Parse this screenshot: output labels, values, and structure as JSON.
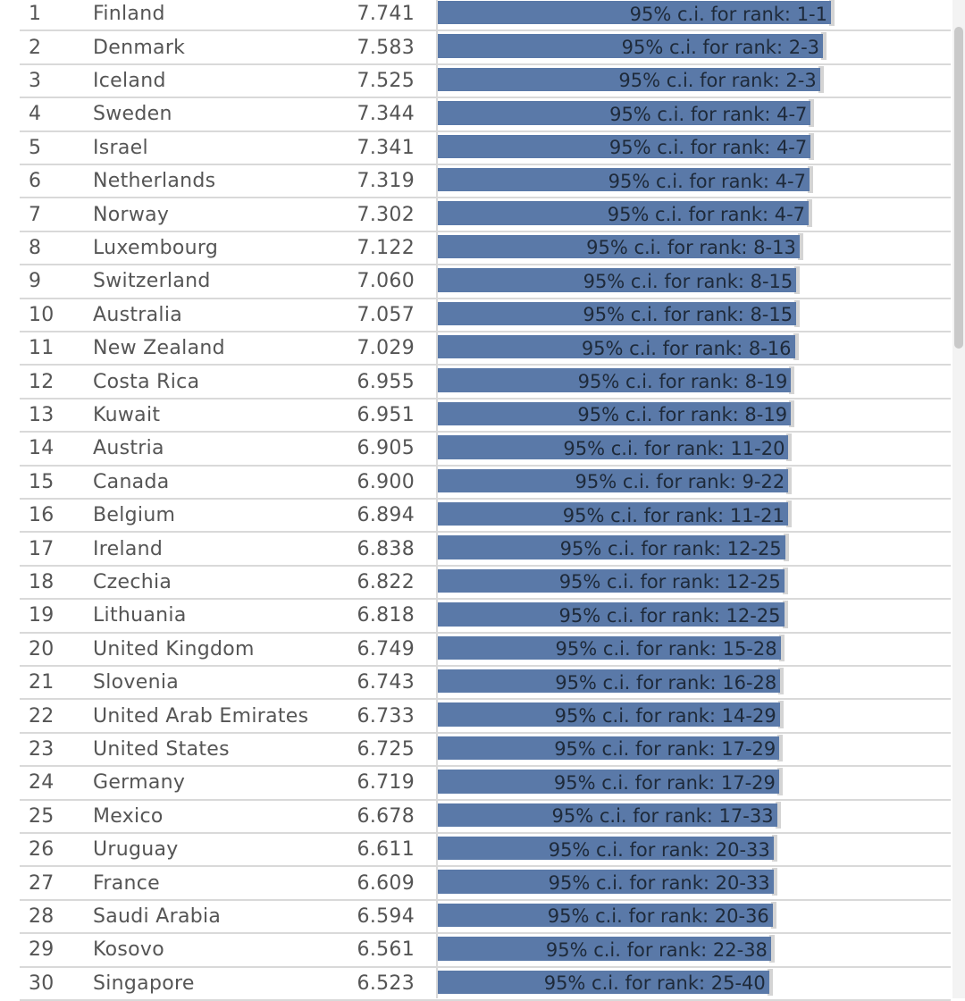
{
  "chart_data": {
    "type": "bar",
    "columns": [
      "rank",
      "country",
      "score",
      "ci_label"
    ],
    "rows": [
      {
        "rank": "1",
        "country": "Finland",
        "score": "7.741",
        "ci": "95% c.i. for rank: 1-1"
      },
      {
        "rank": "2",
        "country": "Denmark",
        "score": "7.583",
        "ci": "95% c.i. for rank: 2-3"
      },
      {
        "rank": "3",
        "country": "Iceland",
        "score": "7.525",
        "ci": "95% c.i. for rank: 2-3"
      },
      {
        "rank": "4",
        "country": "Sweden",
        "score": "7.344",
        "ci": "95% c.i. for rank: 4-7"
      },
      {
        "rank": "5",
        "country": "Israel",
        "score": "7.341",
        "ci": "95% c.i. for rank: 4-7"
      },
      {
        "rank": "6",
        "country": "Netherlands",
        "score": "7.319",
        "ci": "95% c.i. for rank: 4-7"
      },
      {
        "rank": "7",
        "country": "Norway",
        "score": "7.302",
        "ci": "95% c.i. for rank: 4-7"
      },
      {
        "rank": "8",
        "country": "Luxembourg",
        "score": "7.122",
        "ci": "95% c.i. for rank: 8-13"
      },
      {
        "rank": "9",
        "country": "Switzerland",
        "score": "7.060",
        "ci": "95% c.i. for rank: 8-15"
      },
      {
        "rank": "10",
        "country": "Australia",
        "score": "7.057",
        "ci": "95% c.i. for rank: 8-15"
      },
      {
        "rank": "11",
        "country": "New Zealand",
        "score": "7.029",
        "ci": "95% c.i. for rank: 8-16"
      },
      {
        "rank": "12",
        "country": "Costa Rica",
        "score": "6.955",
        "ci": "95% c.i. for rank: 8-19"
      },
      {
        "rank": "13",
        "country": "Kuwait",
        "score": "6.951",
        "ci": "95% c.i. for rank: 8-19"
      },
      {
        "rank": "14",
        "country": "Austria",
        "score": "6.905",
        "ci": "95% c.i. for rank: 11-20"
      },
      {
        "rank": "15",
        "country": "Canada",
        "score": "6.900",
        "ci": "95% c.i. for rank: 9-22"
      },
      {
        "rank": "16",
        "country": "Belgium",
        "score": "6.894",
        "ci": "95% c.i. for rank: 11-21"
      },
      {
        "rank": "17",
        "country": "Ireland",
        "score": "6.838",
        "ci": "95% c.i. for rank: 12-25"
      },
      {
        "rank": "18",
        "country": "Czechia",
        "score": "6.822",
        "ci": "95% c.i. for rank: 12-25"
      },
      {
        "rank": "19",
        "country": "Lithuania",
        "score": "6.818",
        "ci": "95% c.i. for rank: 12-25"
      },
      {
        "rank": "20",
        "country": "United Kingdom",
        "score": "6.749",
        "ci": "95% c.i. for rank: 15-28"
      },
      {
        "rank": "21",
        "country": "Slovenia",
        "score": "6.743",
        "ci": "95% c.i. for rank: 16-28"
      },
      {
        "rank": "22",
        "country": "United Arab Emirates",
        "score": "6.733",
        "ci": "95% c.i. for rank: 14-29"
      },
      {
        "rank": "23",
        "country": "United States",
        "score": "6.725",
        "ci": "95% c.i. for rank: 17-29"
      },
      {
        "rank": "24",
        "country": "Germany",
        "score": "6.719",
        "ci": "95% c.i. for rank: 17-29"
      },
      {
        "rank": "25",
        "country": "Mexico",
        "score": "6.678",
        "ci": "95% c.i. for rank: 17-33"
      },
      {
        "rank": "26",
        "country": "Uruguay",
        "score": "6.611",
        "ci": "95% c.i. for rank: 20-33"
      },
      {
        "rank": "27",
        "country": "France",
        "score": "6.609",
        "ci": "95% c.i. for rank: 20-33"
      },
      {
        "rank": "28",
        "country": "Saudi Arabia",
        "score": "6.594",
        "ci": "95% c.i. for rank: 20-36"
      },
      {
        "rank": "29",
        "country": "Kosovo",
        "score": "6.561",
        "ci": "95% c.i. for rank: 22-38"
      },
      {
        "rank": "30",
        "country": "Singapore",
        "score": "6.523",
        "ci": "95% c.i. for rank: 25-40"
      }
    ],
    "xlim": [
      0,
      7.741
    ],
    "bar_color": "#5a79a8",
    "whisker_color": "#d4d4d4",
    "gridline_color": "#d9d9d9"
  }
}
